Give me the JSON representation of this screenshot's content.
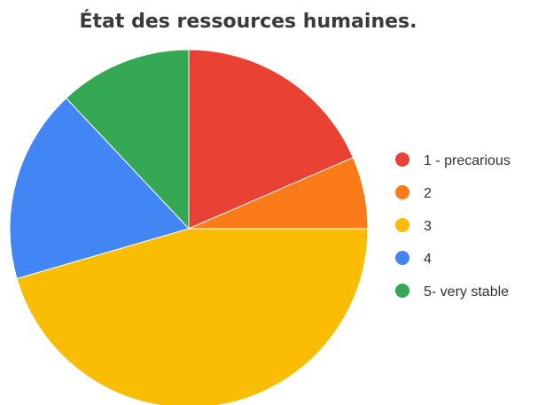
{
  "chart_data": {
    "type": "pie",
    "title": "État des ressources humaines.",
    "legend_position": "right",
    "slices": [
      {
        "label": "1 - precarious",
        "value": 18.5,
        "color": "#E94235"
      },
      {
        "label": "2",
        "value": 6.5,
        "color": "#FA7B17"
      },
      {
        "label": "3",
        "value": 45.5,
        "color": "#FBBC04"
      },
      {
        "label": "4",
        "value": 17.5,
        "color": "#4285F4"
      },
      {
        "label": "5- very stable",
        "value": 12.0,
        "color": "#34A853"
      }
    ]
  }
}
